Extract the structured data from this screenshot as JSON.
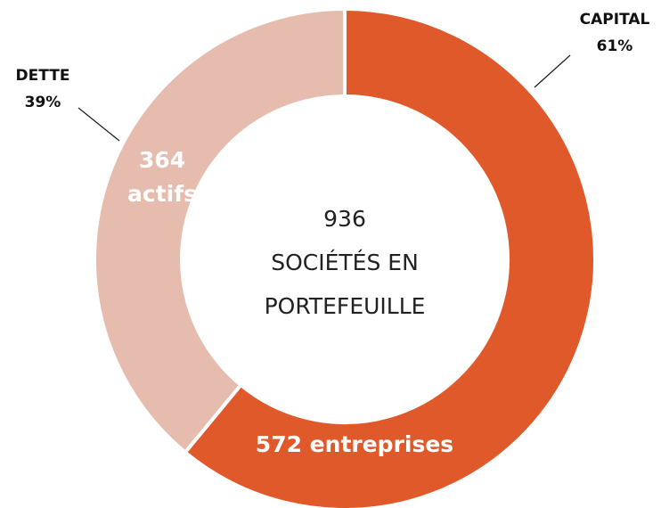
{
  "chart_data": {
    "type": "pie",
    "categories": [
      "CAPITAL",
      "DETTE"
    ],
    "values": [
      61,
      39
    ],
    "value_labels": [
      "61%",
      "39%"
    ],
    "colors": [
      "#e0592a",
      "#e6bcae"
    ],
    "segment_labels": [
      [
        "572 entreprises"
      ],
      [
        "364",
        "actifs"
      ]
    ],
    "center_label": [
      "936",
      "SOCIÉTÉS EN",
      "PORTEFEUILLE"
    ]
  }
}
